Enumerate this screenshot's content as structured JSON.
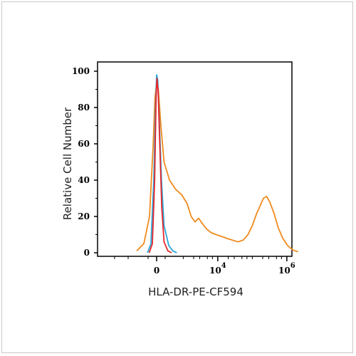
{
  "chart_data": {
    "type": "line",
    "title": "",
    "xlabel": "HLA-DR-PE-CF594",
    "ylabel": "Relative Cell Number",
    "xscale": "biexponential",
    "x_tick_labels": [
      {
        "value": 0,
        "label": "0"
      },
      {
        "value": 10000,
        "label": "10",
        "exponent": "4"
      },
      {
        "value": 1000000,
        "label": "10",
        "exponent": "6"
      }
    ],
    "y_tick_labels": [
      "0",
      "20",
      "40",
      "60",
      "80",
      "100"
    ],
    "ylim": [
      0,
      100
    ],
    "grid": false,
    "legend": "none",
    "series": [
      {
        "color": "#f08a1c",
        "points": [
          [
            -700,
            1
          ],
          [
            -450,
            5
          ],
          [
            -250,
            20
          ],
          [
            -120,
            60
          ],
          [
            -60,
            85
          ],
          [
            0,
            94
          ],
          [
            60,
            90
          ],
          [
            150,
            70
          ],
          [
            260,
            50
          ],
          [
            400,
            40
          ],
          [
            600,
            35
          ],
          [
            900,
            32
          ],
          [
            1300,
            27
          ],
          [
            1700,
            20
          ],
          [
            2200,
            17
          ],
          [
            2800,
            19
          ],
          [
            3600,
            16
          ],
          [
            4800,
            13
          ],
          [
            6500,
            11
          ],
          [
            9000,
            10
          ],
          [
            13000,
            9
          ],
          [
            18000,
            8
          ],
          [
            26000,
            7
          ],
          [
            38000,
            6
          ],
          [
            55000,
            7
          ],
          [
            75000,
            10
          ],
          [
            100000,
            15
          ],
          [
            130000,
            21
          ],
          [
            170000,
            26
          ],
          [
            210000,
            30
          ],
          [
            260000,
            31
          ],
          [
            320000,
            28
          ],
          [
            420000,
            22
          ],
          [
            560000,
            14
          ],
          [
            760000,
            8
          ],
          [
            1050000,
            4
          ],
          [
            1500000,
            1.5
          ],
          [
            2100000,
            0.5
          ]
        ]
      },
      {
        "color": "#2aa6d8",
        "points": [
          [
            -320,
            0
          ],
          [
            -200,
            5
          ],
          [
            -100,
            40
          ],
          [
            -40,
            80
          ],
          [
            0,
            98
          ],
          [
            40,
            95
          ],
          [
            100,
            70
          ],
          [
            170,
            40
          ],
          [
            260,
            15
          ],
          [
            380,
            4
          ],
          [
            500,
            1
          ],
          [
            650,
            0
          ]
        ]
      },
      {
        "color": "#e8262a",
        "points": [
          [
            -260,
            0
          ],
          [
            -150,
            5
          ],
          [
            -70,
            40
          ],
          [
            -20,
            85
          ],
          [
            10,
            96
          ],
          [
            50,
            90
          ],
          [
            110,
            60
          ],
          [
            180,
            25
          ],
          [
            260,
            6
          ],
          [
            360,
            1
          ],
          [
            460,
            0
          ]
        ]
      }
    ]
  }
}
